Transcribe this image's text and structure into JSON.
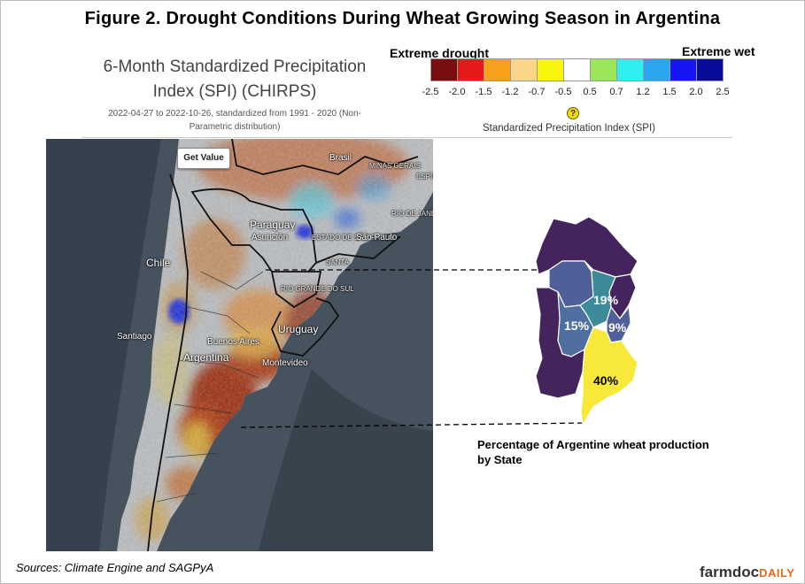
{
  "figure_title": "Figure  2. Drought Conditions During Wheat Growing Season in Argentina",
  "map": {
    "title_line1": "6-Month Standardized Precipitation",
    "title_line2": "Index (SPI) (CHIRPS)",
    "subtitle_line1": "2022-04-27 to 2022-10-26, standardized from 1991 - 2020 (Non-",
    "subtitle_line2": "Parametric distribution)",
    "get_value_label": "Get Value",
    "places": {
      "brasil": "Brasil",
      "minas_gerais": "MINAS GERAIS",
      "espirito_santo": "ESPÍRITO SANTO",
      "rio_de_janeiro": "RIO DE JANEIRO",
      "estado_de_sao_paulo": "ESTADO DE SÃO PAULO",
      "paraguay": "Paraguay",
      "asuncion": "Asunción",
      "sao_paulo": "São Paulo",
      "santa_catarina": "SANTA",
      "rio_grande_do_sul": "RIO GRANDE DO SUL",
      "chile": "Chile",
      "santiago": "Santiago",
      "uruguay": "Uruguay",
      "buenos_aires": "Buenos Aires",
      "argentina": "Argentina",
      "montevideo": "Montevideo"
    }
  },
  "legend": {
    "left_label": "Extreme drought",
    "right_label": "Extreme wet",
    "caption": "Standardized Precipitation Index (SPI)",
    "help_symbol": "?",
    "colors": [
      "#7a0e0e",
      "#e51a1a",
      "#f9a01b",
      "#fcd48a",
      "#f7f50b",
      "#ffffff",
      "#9ce65a",
      "#2ff0ee",
      "#2aa6f0",
      "#1616f5",
      "#0a0a9a"
    ],
    "ticks": [
      "-2.5",
      "-2.0",
      "-1.5",
      "-1.2",
      "-0.7",
      "-0.5",
      "0.5",
      "0.7",
      "1.2",
      "1.5",
      "2.0",
      "2.5"
    ]
  },
  "wheat_map": {
    "percentages": [
      "19%",
      "15%",
      "9%",
      "40%"
    ],
    "caption_line1": "Percentage of Argentine wheat production",
    "caption_line2": "by  State",
    "colors": {
      "low": "#44245c",
      "mid": "#4f5f9a",
      "teal": "#3d8a9a",
      "high": "#f7e83a"
    }
  },
  "sources": "Sources: Climate Engine and SAGPyA",
  "brand": {
    "main": "farmdoc",
    "accent": "DAILY"
  }
}
